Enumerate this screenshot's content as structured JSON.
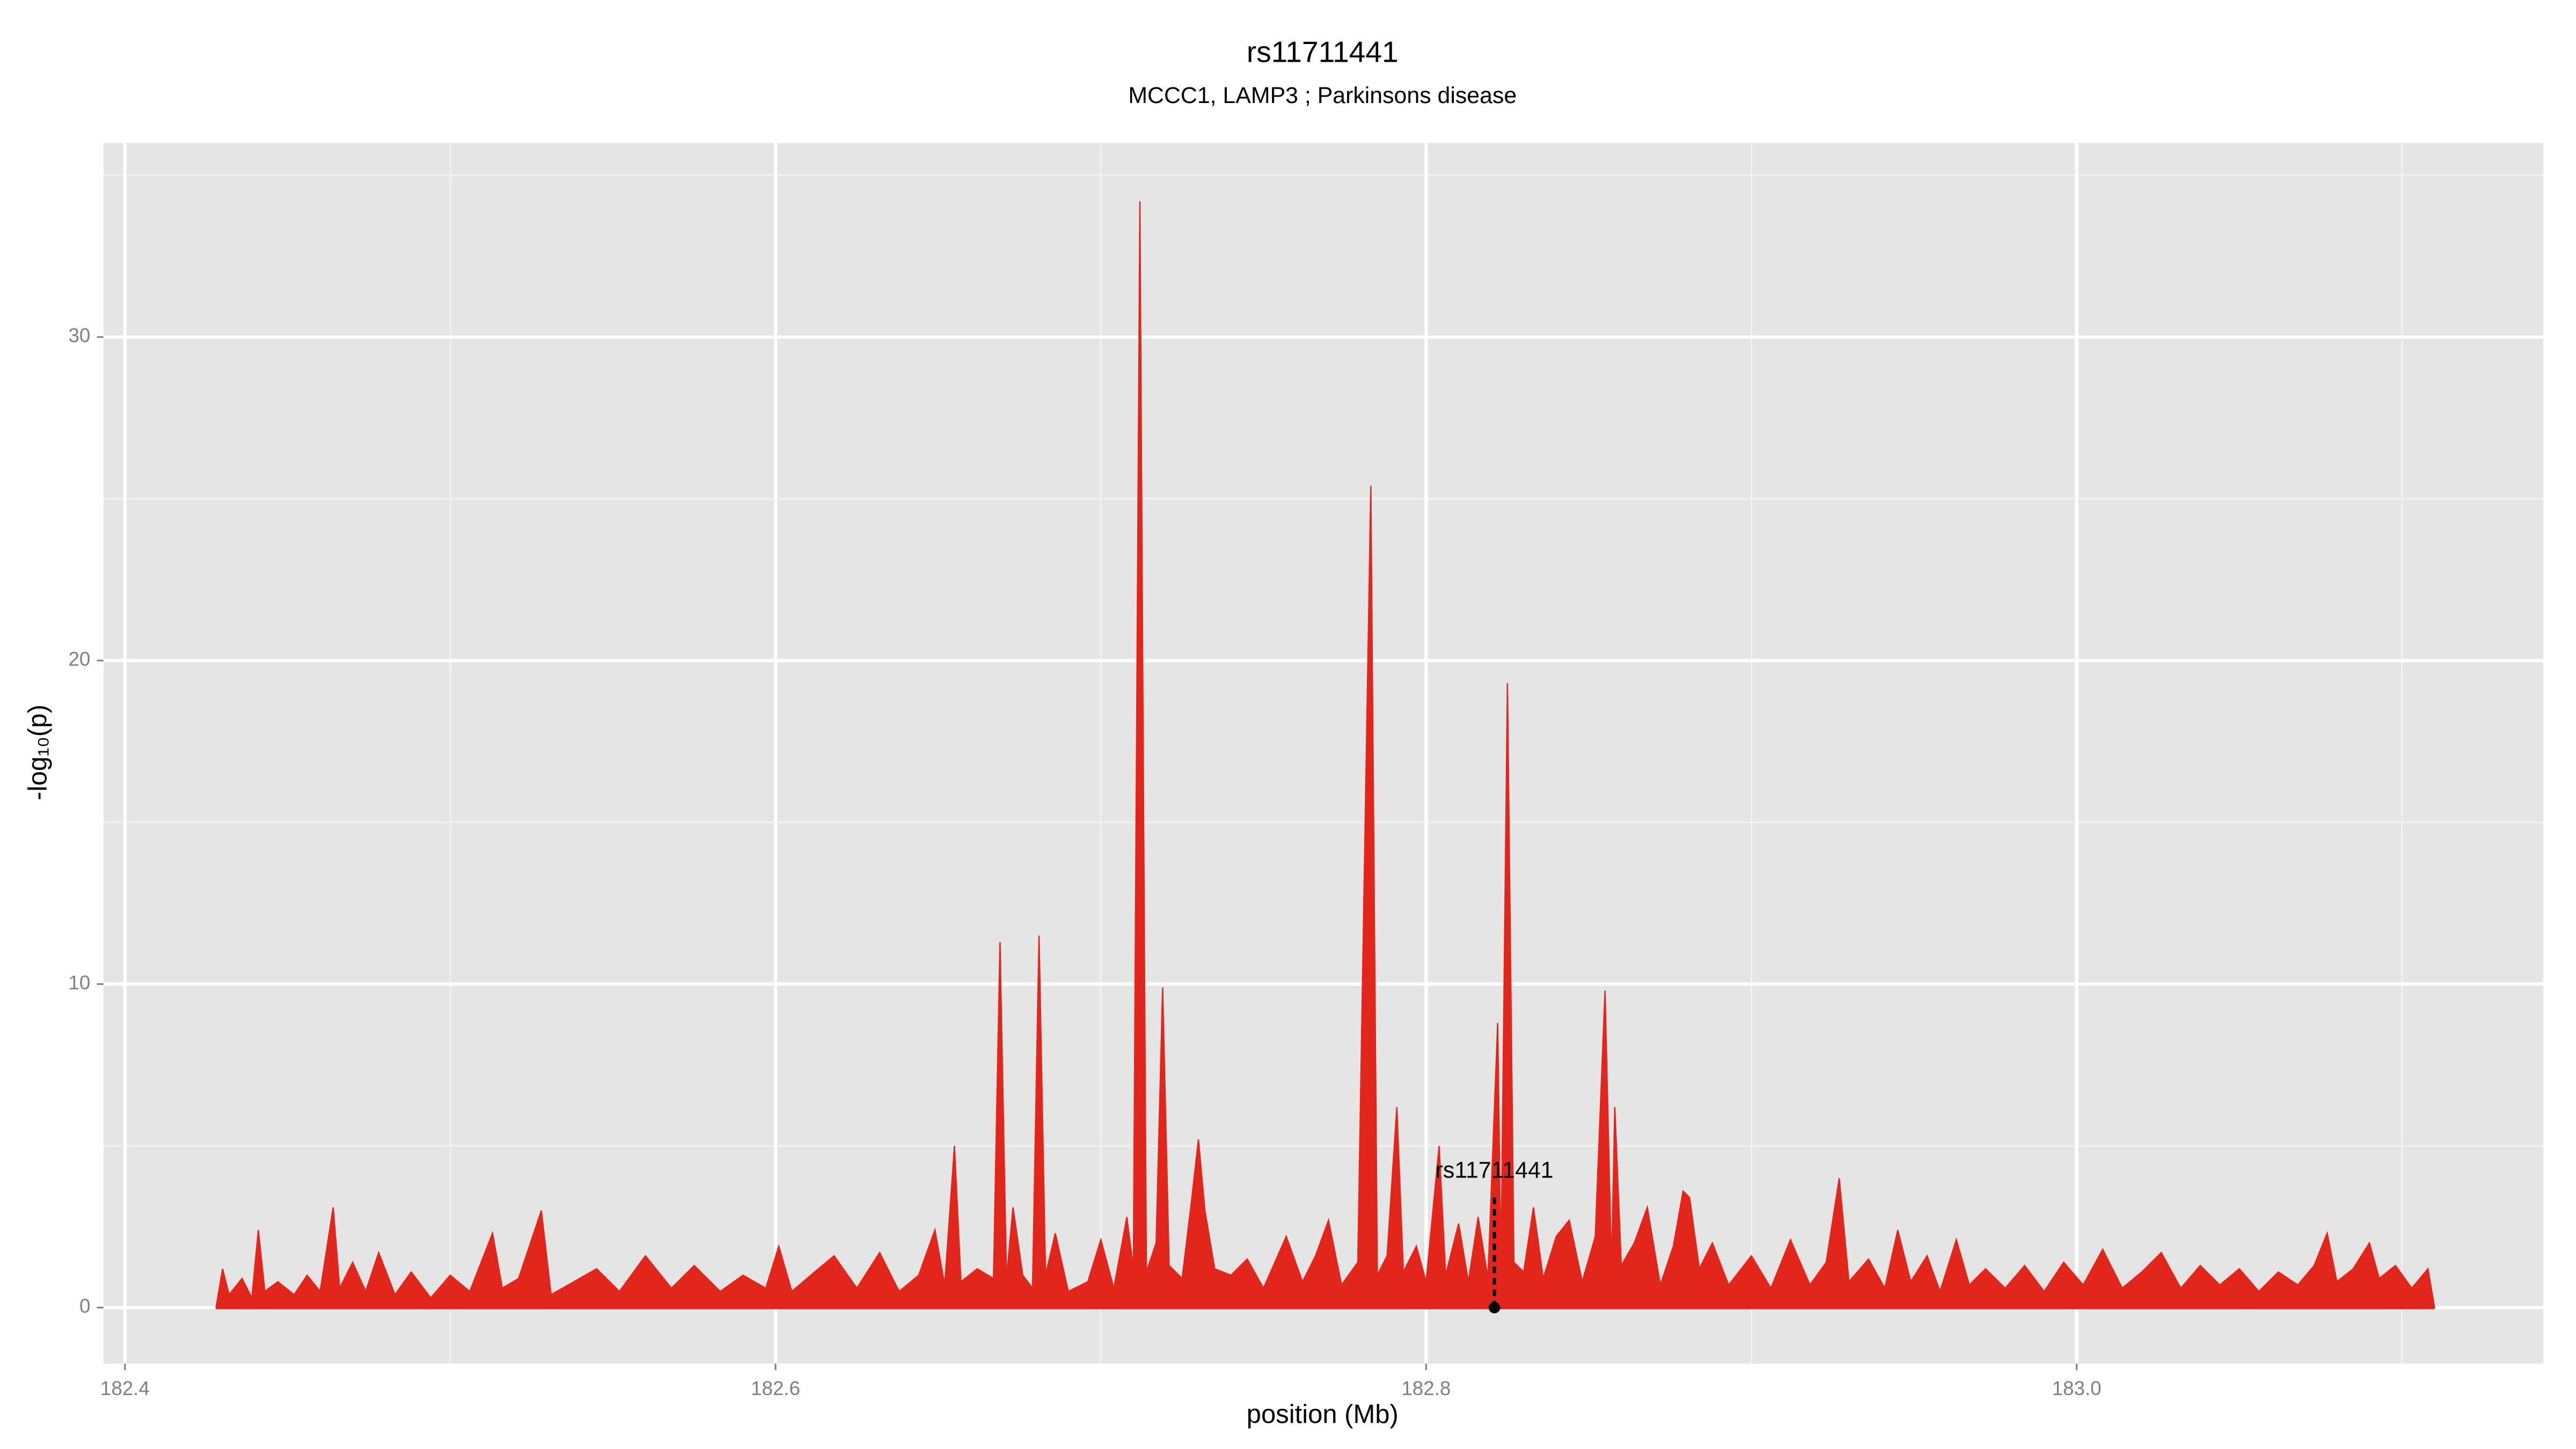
{
  "chart_data": {
    "type": "area",
    "title": "rs11711441",
    "subtitle": "MCCC1, LAMP3 ; Parkinsons disease",
    "xlabel": "position (Mb)",
    "ylabel": "-log₁₀(p)",
    "xlim": [
      182.3934,
      183.1434
    ],
    "ylim": [
      -1.73,
      36
    ],
    "xticks": [
      182.4,
      182.6,
      182.8,
      {
        "value": 183,
        "label": "183.0"
      }
    ],
    "xminorticks": [
      182.5,
      182.7,
      182.9,
      183.1
    ],
    "yticks": [
      0,
      10,
      20,
      30
    ],
    "yminorticks": [
      5,
      15,
      25,
      35
    ],
    "grid": true,
    "color": "#e3261c",
    "annotation": {
      "text": "rs11711441",
      "x": 182.821,
      "y": 4.2,
      "line_to": 3.4
    },
    "x": [
      182.428,
      182.43,
      182.432,
      182.436,
      182.439,
      182.441,
      182.443,
      182.447,
      182.452,
      182.456,
      182.46,
      182.464,
      182.466,
      182.47,
      182.474,
      182.478,
      182.483,
      182.488,
      182.494,
      182.5,
      182.506,
      182.513,
      182.516,
      182.521,
      182.528,
      182.531,
      182.538,
      182.545,
      182.552,
      182.56,
      182.568,
      182.575,
      182.583,
      182.59,
      182.597,
      182.601,
      182.605,
      182.612,
      182.618,
      182.625,
      182.632,
      182.638,
      182.644,
      182.649,
      182.652,
      182.655,
      182.657,
      182.662,
      182.667,
      182.669,
      182.671,
      182.673,
      182.676,
      182.679,
      182.681,
      182.683,
      182.686,
      182.69,
      182.696,
      182.7,
      182.704,
      182.708,
      182.71,
      182.712,
      182.714,
      182.717,
      182.719,
      182.721,
      182.725,
      182.728,
      182.73,
      182.732,
      182.735,
      182.74,
      182.745,
      182.75,
      182.757,
      182.762,
      182.766,
      182.77,
      182.774,
      182.779,
      182.783,
      182.785,
      182.788,
      182.791,
      182.793,
      182.797,
      182.8,
      182.804,
      182.806,
      182.81,
      182.813,
      182.816,
      182.819,
      182.822,
      182.823,
      182.825,
      182.827,
      182.83,
      182.833,
      182.836,
      182.84,
      182.844,
      182.848,
      182.852,
      182.855,
      182.857,
      182.858,
      182.86,
      182.864,
      182.868,
      182.872,
      182.876,
      182.879,
      182.881,
      182.884,
      182.888,
      182.893,
      182.9,
      182.906,
      182.912,
      182.918,
      182.923,
      182.927,
      182.93,
      182.936,
      182.941,
      182.945,
      182.949,
      182.954,
      182.958,
      182.963,
      182.967,
      182.972,
      182.978,
      182.984,
      182.99,
      182.996,
      183.002,
      183.008,
      183.014,
      183.02,
      183.026,
      183.032,
      183.038,
      183.044,
      183.05,
      183.056,
      183.062,
      183.068,
      183.073,
      183.077,
      183.08,
      183.085,
      183.09,
      183.093,
      183.098,
      183.103,
      183.108,
      183.11
    ],
    "values": [
      0,
      1.2,
      0.4,
      0.9,
      0.3,
      2.4,
      0.5,
      0.8,
      0.4,
      1.0,
      0.5,
      3.1,
      0.6,
      1.4,
      0.5,
      1.7,
      0.4,
      1.1,
      0.3,
      1.0,
      0.5,
      2.3,
      0.6,
      0.9,
      3.0,
      0.4,
      0.8,
      1.2,
      0.5,
      1.6,
      0.6,
      1.3,
      0.5,
      1.0,
      0.6,
      1.9,
      0.5,
      1.1,
      1.6,
      0.6,
      1.7,
      0.5,
      1.0,
      2.4,
      0.7,
      5.0,
      0.8,
      1.2,
      0.9,
      11.3,
      0.9,
      3.1,
      1.0,
      0.6,
      11.5,
      1.0,
      2.3,
      0.5,
      0.8,
      2.1,
      0.6,
      2.8,
      1.2,
      34.2,
      1.1,
      2.0,
      9.9,
      1.3,
      0.9,
      3.4,
      5.2,
      3.0,
      1.2,
      1.0,
      1.5,
      0.6,
      2.2,
      0.8,
      1.6,
      2.7,
      0.7,
      1.4,
      25.4,
      1.0,
      1.6,
      6.2,
      1.1,
      1.9,
      0.8,
      5.0,
      1.0,
      2.6,
      0.8,
      2.8,
      0.9,
      8.8,
      1.2,
      19.3,
      1.4,
      1.1,
      3.1,
      0.9,
      2.2,
      2.7,
      0.8,
      2.2,
      9.8,
      1.2,
      6.2,
      1.3,
      2.0,
      3.1,
      0.7,
      1.9,
      3.6,
      3.4,
      1.2,
      2.0,
      0.7,
      1.6,
      0.6,
      2.1,
      0.7,
      1.4,
      4.0,
      0.8,
      1.5,
      0.6,
      2.4,
      0.8,
      1.6,
      0.5,
      2.1,
      0.7,
      1.2,
      0.6,
      1.3,
      0.5,
      1.4,
      0.7,
      1.8,
      0.6,
      1.1,
      1.7,
      0.6,
      1.3,
      0.7,
      1.2,
      0.5,
      1.1,
      0.7,
      1.3,
      2.3,
      0.8,
      1.2,
      2.0,
      0.9,
      1.3,
      0.6,
      1.2,
      0
    ]
  }
}
